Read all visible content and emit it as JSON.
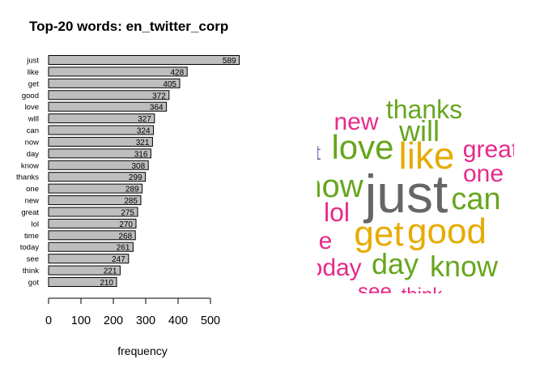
{
  "chart_data": [
    {
      "type": "barh",
      "title": "Top-20 words: en_twitter_corp",
      "xlabel": "frequency",
      "categories": [
        "just",
        "like",
        "get",
        "good",
        "love",
        "will",
        "can",
        "now",
        "day",
        "know",
        "thanks",
        "one",
        "new",
        "great",
        "lol",
        "time",
        "today",
        "see",
        "think",
        "got"
      ],
      "values": [
        589,
        428,
        405,
        372,
        364,
        327,
        324,
        321,
        316,
        308,
        299,
        289,
        285,
        275,
        270,
        268,
        261,
        247,
        221,
        210
      ],
      "color": "#bebebe",
      "xlim": [
        0,
        600
      ],
      "xticks": [
        0,
        100,
        200,
        300,
        400,
        500
      ]
    },
    {
      "type": "wordcloud",
      "words": [
        "thanks",
        "new",
        "will",
        "love",
        "like",
        "great",
        "one",
        "got",
        "now",
        "just",
        "can",
        "lol",
        "time",
        "get",
        "good",
        "today",
        "day",
        "know",
        "see",
        "think"
      ],
      "colors": [
        "#66a61e",
        "#e7298a",
        "#66a61e",
        "#66a61e",
        "#e6ab02",
        "#e7298a",
        "#e7298a",
        "#7570b3",
        "#66a61e",
        "#666666",
        "#66a61e",
        "#e7298a",
        "#e7298a",
        "#e6ab02",
        "#e6ab02",
        "#e7298a",
        "#66a61e",
        "#66a61e",
        "#e7298a",
        "#e7298a"
      ]
    }
  ]
}
